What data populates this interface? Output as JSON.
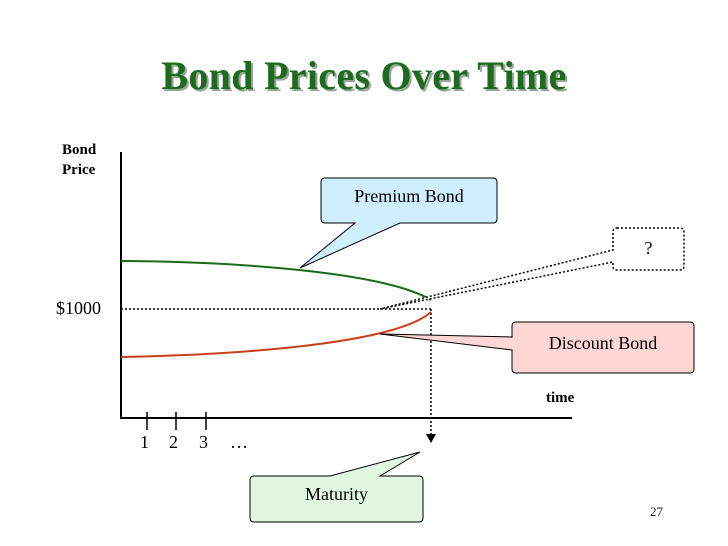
{
  "title": "Bond Prices Over Time",
  "y_axis_label_line1": "Bond",
  "y_axis_label_line2": "Price",
  "par_label": "$1000",
  "x_axis_label": "time",
  "ticks": [
    "1",
    "2",
    "3"
  ],
  "ellipsis": "…",
  "callouts": {
    "premium": "Premium Bond",
    "question": "?",
    "discount": "Discount Bond",
    "maturity": "Maturity"
  },
  "slide_number": "27",
  "colors": {
    "title": "#1e6a1e",
    "premium_curve": "#1a6b1a",
    "discount_curve": "#c8401a",
    "premium_callout_fill": "#cfeeff",
    "discount_callout_fill": "#ffd6d6",
    "maturity_callout_fill": "#e2f7e2"
  }
}
